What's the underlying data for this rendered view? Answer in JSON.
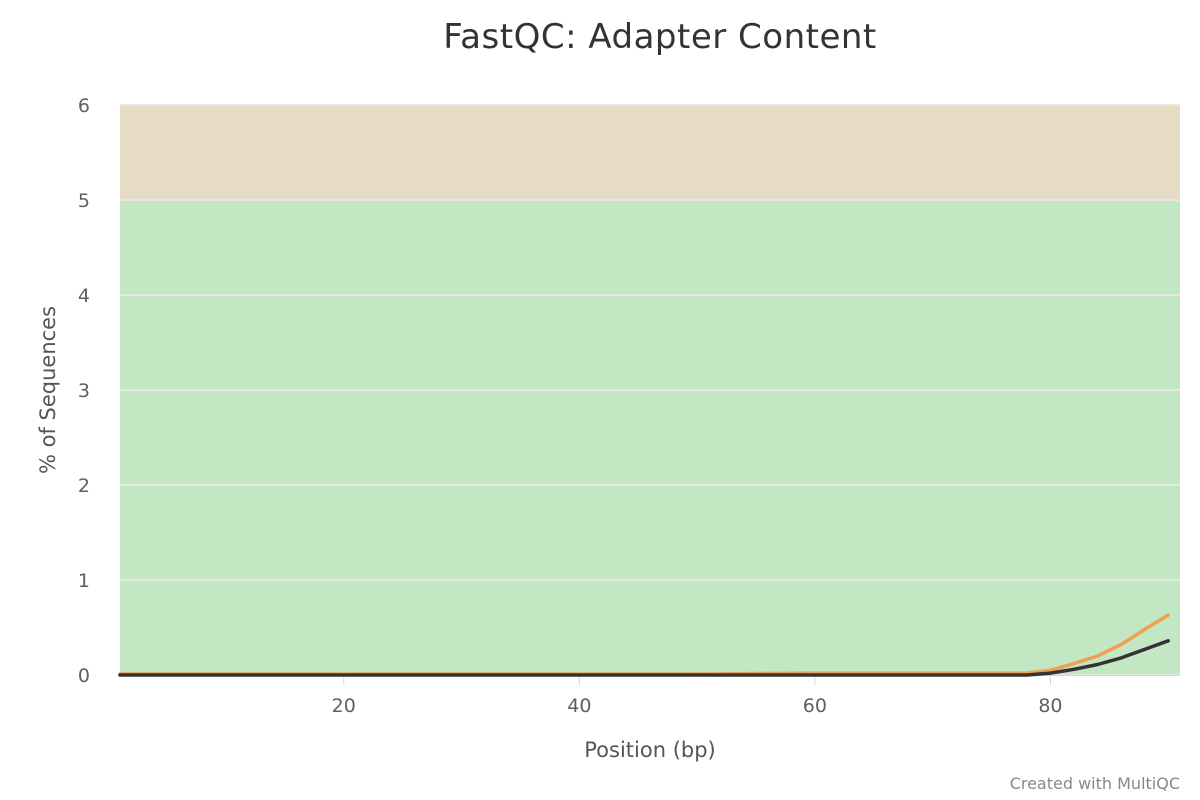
{
  "chart_data": {
    "type": "line",
    "title": "FastQC: Adapter Content",
    "xlabel": "Position (bp)",
    "ylabel": "% of Sequences",
    "xlim": [
      1,
      91
    ],
    "ylim": [
      0,
      6
    ],
    "x_ticks": [
      20,
      40,
      60,
      80
    ],
    "y_ticks": [
      0,
      1,
      2,
      3,
      4,
      5,
      6
    ],
    "grid": true,
    "legend": "none",
    "bands": [
      {
        "from": 0,
        "to": 5,
        "color": "#c3e6c3",
        "label": ""
      },
      {
        "from": 5,
        "to": 6,
        "color": "#e6dcc3",
        "label": ""
      }
    ],
    "series": [
      {
        "color": "#f0a050",
        "x": [
          1,
          10,
          20,
          30,
          40,
          50,
          60,
          70,
          78,
          80,
          82,
          84,
          86,
          88,
          90
        ],
        "y": [
          0.01,
          0.01,
          0.01,
          0.01,
          0.01,
          0.01,
          0.02,
          0.02,
          0.02,
          0.05,
          0.12,
          0.2,
          0.32,
          0.48,
          0.63
        ]
      },
      {
        "color": "#333333",
        "x": [
          1,
          10,
          20,
          30,
          40,
          50,
          60,
          70,
          78,
          80,
          82,
          84,
          86,
          88,
          90
        ],
        "y": [
          0.0,
          0.0,
          0.0,
          0.0,
          0.0,
          0.0,
          0.0,
          0.0,
          0.0,
          0.02,
          0.06,
          0.11,
          0.18,
          0.27,
          0.36
        ]
      }
    ]
  },
  "credit": "Created with MultiQC"
}
